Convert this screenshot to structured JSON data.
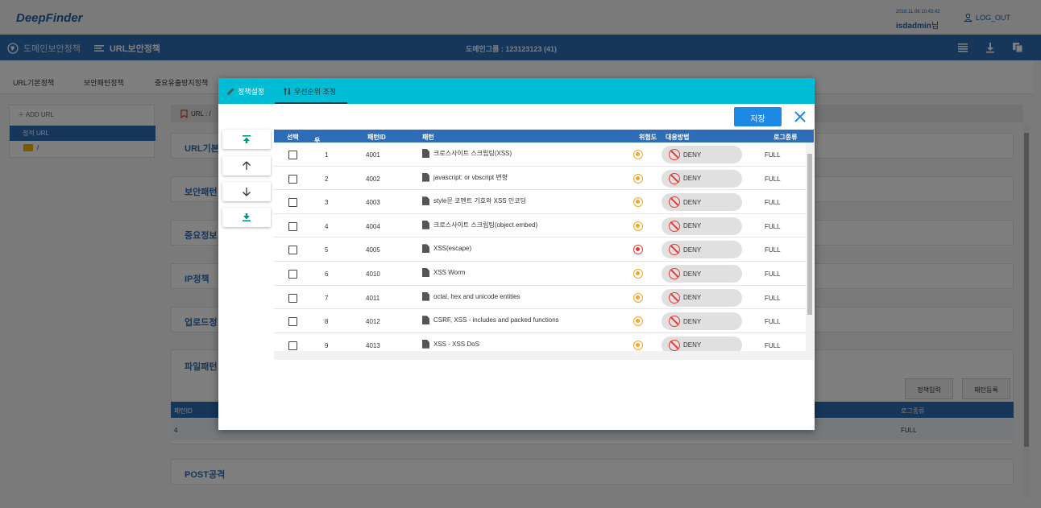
{
  "app": {
    "logo": "DeepFinder",
    "datetime": "2018.11.06 10:43:42",
    "user": "isdadmin",
    "user_suffix": "님",
    "logout": "LOG_OUT"
  },
  "nav": {
    "crumb1": "도메인보안정책",
    "crumb2": "URL보안정책",
    "center": "도메인그룹 : 123123123 (41)"
  },
  "tabs": [
    "URL기본정책",
    "보안패턴정책",
    "중요유출방지정책"
  ],
  "tree": {
    "add": "ADD URL",
    "selected": "정적 URL",
    "folder": "/"
  },
  "urlbar": "URL : /",
  "sections": [
    "URL기본",
    "보안패턴",
    "중요정보",
    "IP정책",
    "업로드정",
    "파일패턴",
    "POST공격"
  ],
  "background_buttons": {
    "policy_input": "정책입력",
    "pattern_register": "패턴등록"
  },
  "background_table": {
    "headers": {
      "id": "패턴ID",
      "log": "로그종류"
    },
    "row": {
      "id": "4",
      "log": "FULL"
    }
  },
  "modal": {
    "tab1": "정책설정",
    "tab2": "우선순위 조정",
    "save": "저장",
    "headers": {
      "select": "선택",
      "priority": "우선순위",
      "pattern_id": "패턴ID",
      "pattern": "패턴",
      "risk": "위험도",
      "action": "대응방법",
      "log": "로그종류"
    },
    "rows": [
      {
        "priority": "1",
        "id": "4001",
        "pattern": "크로스사이트 스크립팅(XSS)",
        "risk": "medium",
        "action": "DENY",
        "log": "FULL"
      },
      {
        "priority": "2",
        "id": "4002",
        "pattern": "javascript: or vbscript 변형",
        "risk": "medium",
        "action": "DENY",
        "log": "FULL"
      },
      {
        "priority": "3",
        "id": "4003",
        "pattern": "style문 코멘트 기호와 XSS 인코딩",
        "risk": "medium",
        "action": "DENY",
        "log": "FULL"
      },
      {
        "priority": "4",
        "id": "4004",
        "pattern": "크로스사이트 스크립팅(object embed)",
        "risk": "medium",
        "action": "DENY",
        "log": "FULL"
      },
      {
        "priority": "5",
        "id": "4005",
        "pattern": "XSS(escape)",
        "risk": "high",
        "action": "DENY",
        "log": "FULL"
      },
      {
        "priority": "6",
        "id": "4010",
        "pattern": "XSS Worm",
        "risk": "medium",
        "action": "DENY",
        "log": "FULL"
      },
      {
        "priority": "7",
        "id": "4011",
        "pattern": "octal, hex and unicode entities",
        "risk": "medium",
        "action": "DENY",
        "log": "FULL"
      },
      {
        "priority": "8",
        "id": "4012",
        "pattern": "CSRF, XSS - includes and packed functions",
        "risk": "medium",
        "action": "DENY",
        "log": "FULL"
      },
      {
        "priority": "9",
        "id": "4013",
        "pattern": "XSS - XSS DoS",
        "risk": "medium",
        "action": "DENY",
        "log": "FULL"
      }
    ]
  },
  "colors": {
    "nav": "#2d6db5",
    "modal_tab": "#00bcd4",
    "save": "#1e88e5",
    "risk_medium": "#f5a623",
    "risk_high": "#e53935"
  }
}
